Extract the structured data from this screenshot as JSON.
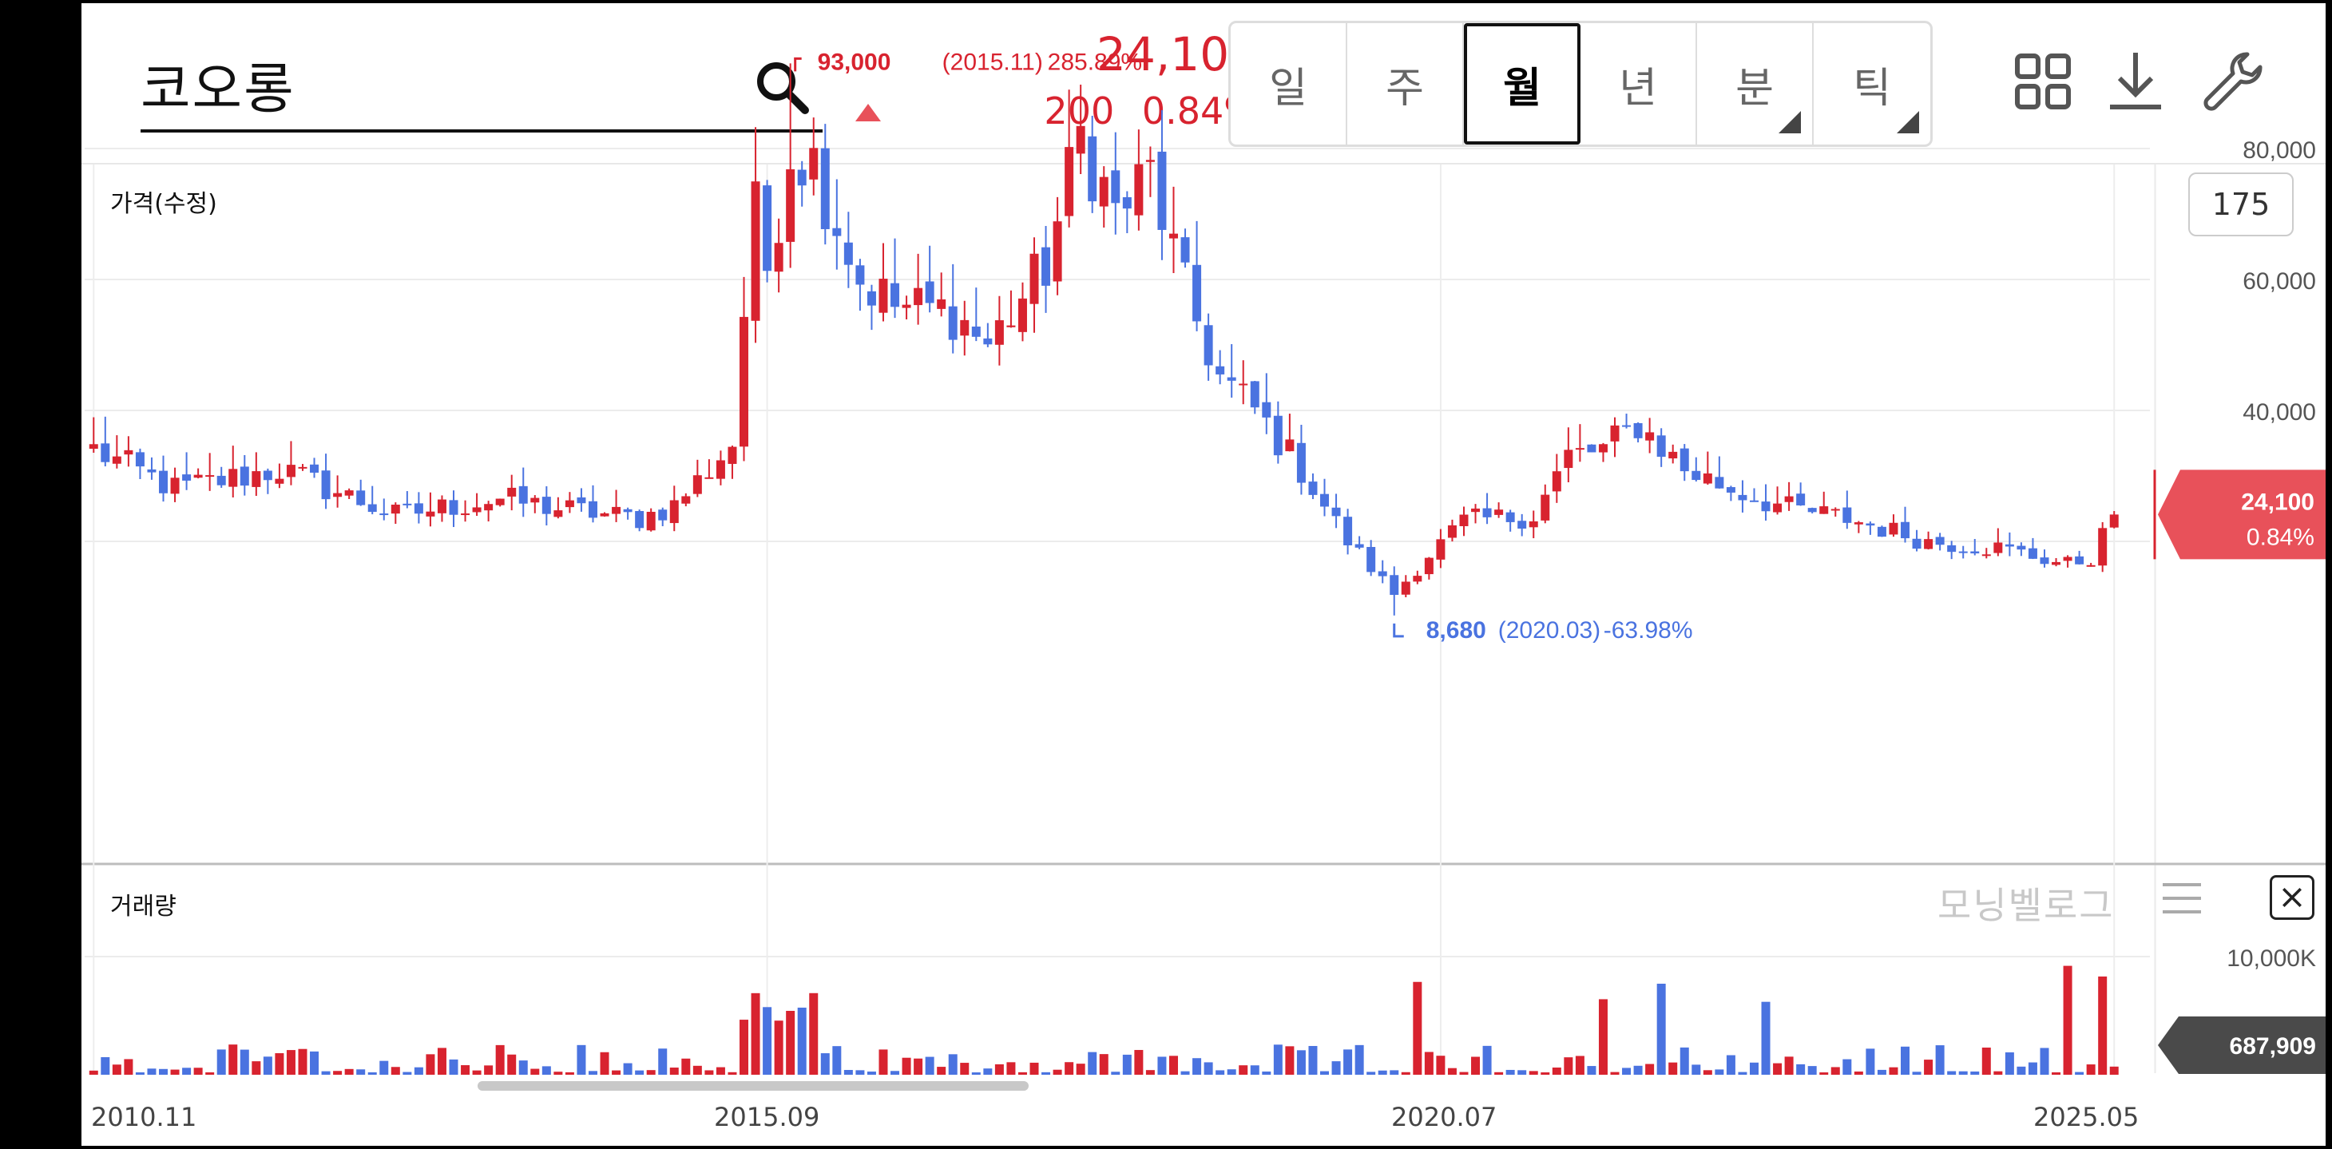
{
  "header": {
    "search_value": "코오롱",
    "price": "24,100",
    "change": "200",
    "change_pct": "0.84%",
    "trend": "up",
    "up_color": "#d8232f",
    "down_color": "#4a73e0"
  },
  "period_tabs": [
    {
      "label": "일",
      "active": false,
      "has_submenu": false
    },
    {
      "label": "주",
      "active": false,
      "has_submenu": false
    },
    {
      "label": "월",
      "active": true,
      "has_submenu": false
    },
    {
      "label": "년",
      "active": false,
      "has_submenu": false
    },
    {
      "label": "분",
      "active": false,
      "has_submenu": true
    },
    {
      "label": "틱",
      "active": false,
      "has_submenu": true
    }
  ],
  "toolbar": {
    "icons": [
      "grid-icon",
      "download-icon",
      "wrench-icon"
    ]
  },
  "chart": {
    "price_label": "가격(수정)",
    "volume_label": "거래량",
    "zoom": "175",
    "watermark": "모닝벨로그",
    "current_price_tag": "24,100",
    "current_pct_tag": "0.84%",
    "current_volume_tag": "687,909",
    "high_annotation": {
      "price": "93,000",
      "date": "(2015.11)",
      "pct": "285.89%"
    },
    "low_annotation": {
      "price": "8,680",
      "date": "(2020.03)",
      "pct": "-63.98%"
    },
    "x_labels": [
      "2010.11",
      "2015.09",
      "2020.07",
      "2025.05"
    ],
    "y_labels": [
      "80,000",
      "60,000",
      "40,000"
    ],
    "volume_y_label": "10,000K"
  },
  "chart_data": {
    "type": "candlestick",
    "title": "가격(수정)",
    "period": "monthly",
    "y_ticks": [
      40000,
      60000,
      80000
    ],
    "volume_ticks_label": "10,000K",
    "x_ticks": [
      "2010.11",
      "2015.09",
      "2020.07",
      "2025.05"
    ],
    "high": {
      "value": 93000,
      "date": "2015.11"
    },
    "low": {
      "value": 8680,
      "date": "2020.03"
    },
    "last_close": 24100,
    "last_volume": 687909,
    "anchors": [
      [
        "2010.11",
        34000
      ],
      [
        "2011.06",
        28000
      ],
      [
        "2012.03",
        31000
      ],
      [
        "2013.01",
        24000
      ],
      [
        "2013.10",
        26500
      ],
      [
        "2014.03",
        25000
      ],
      [
        "2014.10",
        23500
      ],
      [
        "2015.01",
        25500
      ],
      [
        "2015.04",
        31000
      ],
      [
        "2015.06",
        35000
      ],
      [
        "2015.07",
        55000
      ],
      [
        "2015.08",
        70000
      ],
      [
        "2015.09",
        62000
      ],
      [
        "2015.11",
        80000
      ],
      [
        "2016.01",
        78000
      ],
      [
        "2016.05",
        60000
      ],
      [
        "2016.08",
        56000
      ],
      [
        "2017.01",
        55000
      ],
      [
        "2017.04",
        50000
      ],
      [
        "2017.09",
        62000
      ],
      [
        "2017.12",
        82000
      ],
      [
        "2018.03",
        70000
      ],
      [
        "2018.06",
        76000
      ],
      [
        "2018.09",
        58000
      ],
      [
        "2018.12",
        45000
      ],
      [
        "2019.03",
        40000
      ],
      [
        "2019.07",
        31000
      ],
      [
        "2019.11",
        20000
      ],
      [
        "2020.03",
        12000
      ],
      [
        "2020.06",
        18000
      ],
      [
        "2020.09",
        23000
      ],
      [
        "2021.03",
        24000
      ],
      [
        "2021.06",
        33000
      ],
      [
        "2021.09",
        34000
      ],
      [
        "2021.12",
        38000
      ],
      [
        "2022.04",
        31000
      ],
      [
        "2022.08",
        28000
      ],
      [
        "2023.01",
        25000
      ],
      [
        "2023.06",
        23500
      ],
      [
        "2024.01",
        20000
      ],
      [
        "2024.07",
        19000
      ],
      [
        "2025.01",
        16500
      ],
      [
        "2025.03",
        17500
      ],
      [
        "2025.05",
        24000
      ]
    ]
  }
}
